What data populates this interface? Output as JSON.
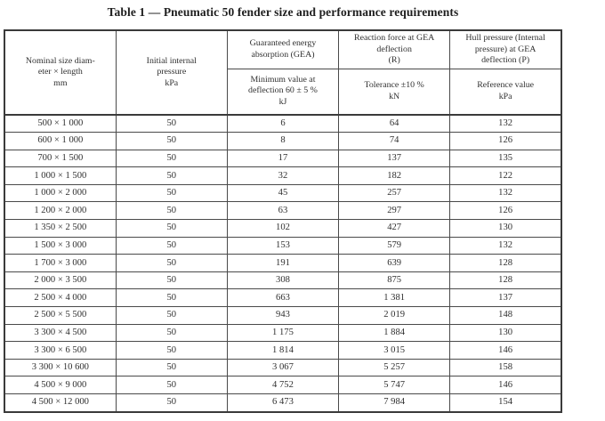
{
  "page": {
    "title": "Table 1 — Pneumatic 50 fender size and performance requirements"
  },
  "colors": {
    "text": "#2f2f2f",
    "border": "#4a4a4a",
    "outer_border": "#3a3a3a",
    "background": "#ffffff"
  },
  "table": {
    "header": {
      "nominal_size": "Nominal size diam-\neter × length\nmm",
      "initial_pressure": "Initial internal\npressure\nkPa",
      "gea_top": "Guaranteed energy\nabsorption (GEA)",
      "gea_sub": "Minimum value at\ndeflection 60 ± 5 %\nkJ",
      "reaction_top": "Reaction force at GEA\ndeflection\n(R)",
      "reaction_sub": "Tolerance ±10 %\nkN",
      "hull_top": "Hull pressure (Internal\npressure) at GEA\ndeflection (P)",
      "hull_sub": "Reference value\nkPa"
    },
    "rows": [
      [
        "500 × 1 000",
        "50",
        "6",
        "64",
        "132"
      ],
      [
        "600 × 1 000",
        "50",
        "8",
        "74",
        "126"
      ],
      [
        "700 × 1 500",
        "50",
        "17",
        "137",
        "135"
      ],
      [
        "1 000 × 1 500",
        "50",
        "32",
        "182",
        "122"
      ],
      [
        "1 000 × 2 000",
        "50",
        "45",
        "257",
        "132"
      ],
      [
        "1 200 × 2 000",
        "50",
        "63",
        "297",
        "126"
      ],
      [
        "1 350 × 2 500",
        "50",
        "102",
        "427",
        "130"
      ],
      [
        "1 500 × 3 000",
        "50",
        "153",
        "579",
        "132"
      ],
      [
        "1 700 × 3 000",
        "50",
        "191",
        "639",
        "128"
      ],
      [
        "2 000 × 3 500",
        "50",
        "308",
        "875",
        "128"
      ],
      [
        "2 500 × 4 000",
        "50",
        "663",
        "1 381",
        "137"
      ],
      [
        "2 500 × 5 500",
        "50",
        "943",
        "2 019",
        "148"
      ],
      [
        "3 300 × 4 500",
        "50",
        "1 175",
        "1 884",
        "130"
      ],
      [
        "3 300 × 6 500",
        "50",
        "1 814",
        "3 015",
        "146"
      ],
      [
        "3 300 × 10 600",
        "50",
        "3 067",
        "5 257",
        "158"
      ],
      [
        "4 500 × 9 000",
        "50",
        "4 752",
        "5 747",
        "146"
      ],
      [
        "4 500 × 12 000",
        "50",
        "6 473",
        "7 984",
        "154"
      ]
    ]
  }
}
